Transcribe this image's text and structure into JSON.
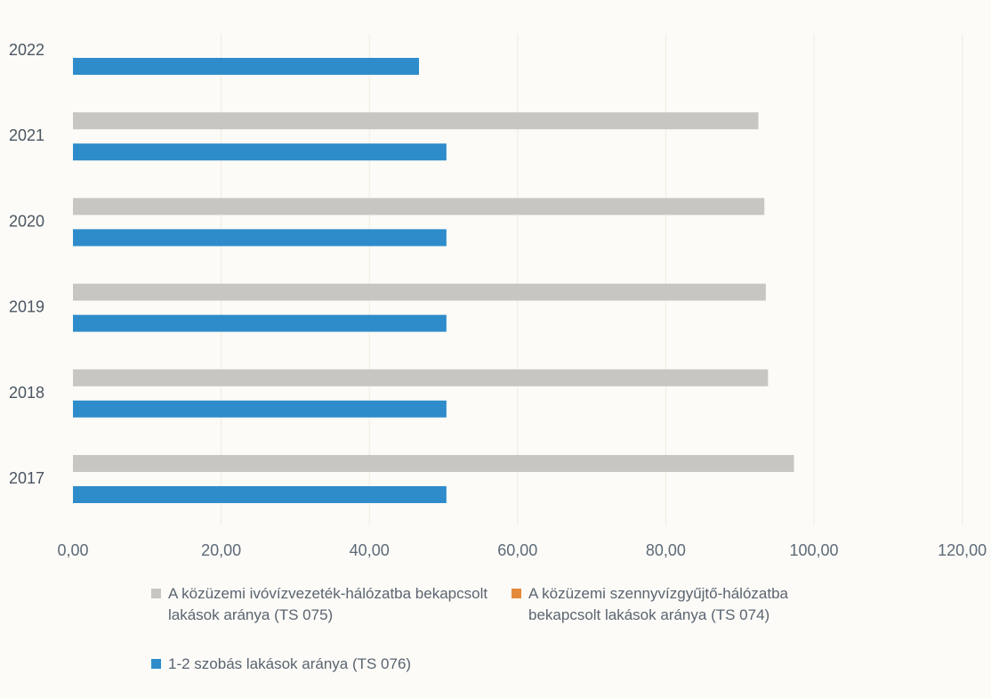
{
  "chart_data": {
    "type": "bar",
    "orientation": "horizontal",
    "categories": [
      "2017",
      "2018",
      "2019",
      "2020",
      "2021",
      "2022"
    ],
    "series": [
      {
        "name": "A közüzemi ivóvízvezeték-hálózatba bekapcsolt lakások aránya (TS 075)",
        "color": "#c8c6c2",
        "values": [
          97.3,
          93.8,
          93.5,
          93.3,
          92.5,
          null
        ]
      },
      {
        "name": "A közüzemi szennyvízgyűjtő-hálózatba bekapcsolt lakások aránya (TS 074)",
        "color": "#e58a3a",
        "values": [
          null,
          null,
          null,
          null,
          null,
          null
        ]
      },
      {
        "name": "1-2 szobás lakások aránya (TS 076)",
        "color": "#2e8ccb",
        "values": [
          50.4,
          50.4,
          50.4,
          50.4,
          50.4,
          46.7
        ]
      }
    ],
    "xlim": [
      0,
      120
    ],
    "xticks": [
      "0,00",
      "20,00",
      "40,00",
      "60,00",
      "80,00",
      "100,00",
      "120,00"
    ],
    "grid": true,
    "legend_position": "bottom"
  }
}
